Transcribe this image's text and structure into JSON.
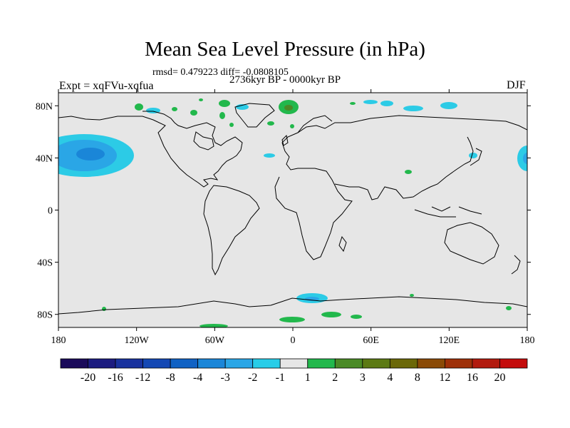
{
  "title": "Mean Sea Level Pressure (in hPa)",
  "stats": "rmsd= 0.479223 diff= -0.0808105",
  "experiment": "Expt = xqFVu-xqfua",
  "period": "2736kyr BP - 0000kyr BP",
  "season": "DJF",
  "map": {
    "lon_ticks": [
      {
        "lon": -180,
        "label": "180"
      },
      {
        "lon": -120,
        "label": "120W"
      },
      {
        "lon": -60,
        "label": "60W"
      },
      {
        "lon": 0,
        "label": "0"
      },
      {
        "lon": 60,
        "label": "60E"
      },
      {
        "lon": 120,
        "label": "120E"
      },
      {
        "lon": 180,
        "label": "180"
      }
    ],
    "lat_ticks": [
      {
        "lat": 80,
        "label": "80N"
      },
      {
        "lat": 40,
        "label": "40N"
      },
      {
        "lat": 0,
        "label": "0"
      },
      {
        "lat": -40,
        "label": "40S"
      },
      {
        "lat": -80,
        "label": "80S"
      }
    ],
    "lon_range": [
      -180,
      180
    ],
    "lat_range": [
      -90,
      90
    ]
  },
  "colorbar": {
    "colors": [
      "#1a0a5a",
      "#1c1c80",
      "#19329e",
      "#1448b4",
      "#1062c4",
      "#1a86d8",
      "#2aa6e6",
      "#28cde8",
      "#e6e6e6",
      "#22b84c",
      "#4a8a26",
      "#5c7a14",
      "#6b6808",
      "#8a4a06",
      "#9e3008",
      "#b21a0e",
      "#c40c0c"
    ],
    "labels": [
      "-20",
      "-16",
      "-12",
      "-8",
      "-4",
      "-3",
      "-2",
      "-1",
      "1",
      "2",
      "3",
      "4",
      "8",
      "12",
      "16",
      "20"
    ]
  },
  "anomalies": [
    {
      "name": "north-pacific-low",
      "lon": -167,
      "lat": 43,
      "level": "-4 to -1 hPa"
    },
    {
      "name": "antarctic-coast-low",
      "lon": 15,
      "lat": -68,
      "level": "-2 to -1 hPa"
    },
    {
      "name": "north-atlantic-high",
      "lon": -3,
      "lat": 80,
      "level": "1 to 3 hPa"
    }
  ]
}
